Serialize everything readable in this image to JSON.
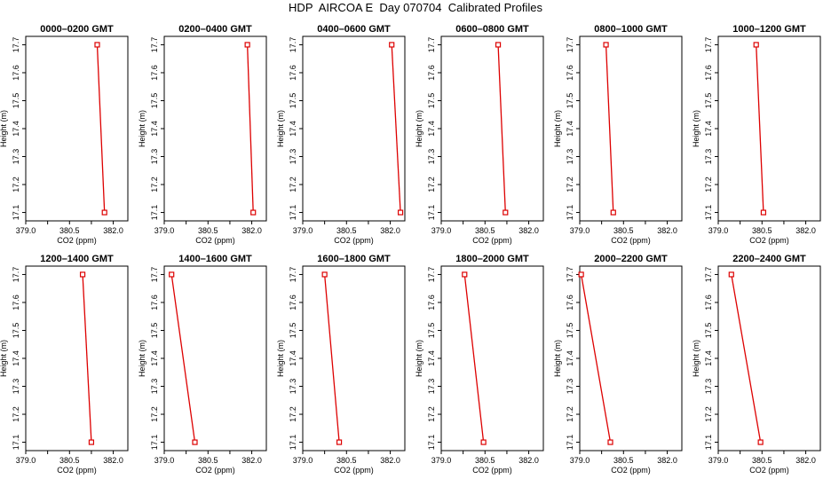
{
  "title": "HDP  AIRCOA E  Day 070704  Calibrated Profiles",
  "chart_data": [
    {
      "type": "line",
      "title": "0000–0200 GMT",
      "xlabel": "CO2 (ppm)",
      "ylabel": "Height (m)",
      "xlim": [
        379.0,
        382.5
      ],
      "ylim": [
        17.07,
        17.73
      ],
      "x_ticks": [
        "379.0",
        "380.5",
        "382.0"
      ],
      "y_ticks": [
        "17.1",
        "17.2",
        "17.3",
        "17.4",
        "17.5",
        "17.6",
        "17.7"
      ],
      "series": [
        {
          "x": [
            381.45,
            381.7
          ],
          "y": [
            17.7,
            17.1
          ]
        }
      ]
    },
    {
      "type": "line",
      "title": "0200–0400 GMT",
      "xlabel": "CO2 (ppm)",
      "ylabel": "Height (m)",
      "xlim": [
        379.0,
        382.5
      ],
      "ylim": [
        17.07,
        17.73
      ],
      "x_ticks": [
        "379.0",
        "380.5",
        "382.0"
      ],
      "y_ticks": [
        "17.1",
        "17.2",
        "17.3",
        "17.4",
        "17.5",
        "17.6",
        "17.7"
      ],
      "series": [
        {
          "x": [
            381.85,
            382.05
          ],
          "y": [
            17.7,
            17.1
          ]
        }
      ]
    },
    {
      "type": "line",
      "title": "0400–0600 GMT",
      "xlabel": "CO2 (ppm)",
      "ylabel": "Height (m)",
      "xlim": [
        379.0,
        382.5
      ],
      "ylim": [
        17.07,
        17.73
      ],
      "x_ticks": [
        "379.0",
        "380.5",
        "382.0"
      ],
      "y_ticks": [
        "17.1",
        "17.2",
        "17.3",
        "17.4",
        "17.5",
        "17.6",
        "17.7"
      ],
      "series": [
        {
          "x": [
            382.05,
            382.35
          ],
          "y": [
            17.7,
            17.1
          ]
        }
      ]
    },
    {
      "type": "line",
      "title": "0600–0800 GMT",
      "xlabel": "CO2 (ppm)",
      "ylabel": "Height (m)",
      "xlim": [
        379.0,
        382.5
      ],
      "ylim": [
        17.07,
        17.73
      ],
      "x_ticks": [
        "379.0",
        "380.5",
        "382.0"
      ],
      "y_ticks": [
        "17.1",
        "17.2",
        "17.3",
        "17.4",
        "17.5",
        "17.6",
        "17.7"
      ],
      "series": [
        {
          "x": [
            380.95,
            381.2
          ],
          "y": [
            17.7,
            17.1
          ]
        }
      ]
    },
    {
      "type": "line",
      "title": "0800–1000 GMT",
      "xlabel": "CO2 (ppm)",
      "ylabel": "Height (m)",
      "xlim": [
        379.0,
        382.5
      ],
      "ylim": [
        17.07,
        17.73
      ],
      "x_ticks": [
        "379.0",
        "380.5",
        "382.0"
      ],
      "y_ticks": [
        "17.1",
        "17.2",
        "17.3",
        "17.4",
        "17.5",
        "17.6",
        "17.7"
      ],
      "series": [
        {
          "x": [
            379.9,
            380.15
          ],
          "y": [
            17.7,
            17.1
          ]
        }
      ]
    },
    {
      "type": "line",
      "title": "1000–1200 GMT",
      "xlabel": "CO2 (ppm)",
      "ylabel": "Height (m)",
      "xlim": [
        379.0,
        382.5
      ],
      "ylim": [
        17.07,
        17.73
      ],
      "x_ticks": [
        "379.0",
        "380.5",
        "382.0"
      ],
      "y_ticks": [
        "17.1",
        "17.2",
        "17.3",
        "17.4",
        "17.5",
        "17.6",
        "17.7"
      ],
      "series": [
        {
          "x": [
            380.3,
            380.55
          ],
          "y": [
            17.7,
            17.1
          ]
        }
      ]
    },
    {
      "type": "line",
      "title": "1200–1400 GMT",
      "xlabel": "CO2 (ppm)",
      "ylabel": "Height (m)",
      "xlim": [
        379.0,
        382.5
      ],
      "ylim": [
        17.07,
        17.73
      ],
      "x_ticks": [
        "379.0",
        "380.5",
        "382.0"
      ],
      "y_ticks": [
        "17.1",
        "17.2",
        "17.3",
        "17.4",
        "17.5",
        "17.6",
        "17.7"
      ],
      "series": [
        {
          "x": [
            380.95,
            381.25
          ],
          "y": [
            17.7,
            17.1
          ]
        }
      ]
    },
    {
      "type": "line",
      "title": "1400–1600 GMT",
      "xlabel": "CO2 (ppm)",
      "ylabel": "Height (m)",
      "xlim": [
        379.0,
        382.5
      ],
      "ylim": [
        17.07,
        17.73
      ],
      "x_ticks": [
        "379.0",
        "380.5",
        "382.0"
      ],
      "y_ticks": [
        "17.1",
        "17.2",
        "17.3",
        "17.4",
        "17.5",
        "17.6",
        "17.7"
      ],
      "series": [
        {
          "x": [
            379.25,
            380.05
          ],
          "y": [
            17.7,
            17.1
          ]
        }
      ]
    },
    {
      "type": "line",
      "title": "1600–1800 GMT",
      "xlabel": "CO2 (ppm)",
      "ylabel": "Height (m)",
      "xlim": [
        379.0,
        382.5
      ],
      "ylim": [
        17.07,
        17.73
      ],
      "x_ticks": [
        "379.0",
        "380.5",
        "382.0"
      ],
      "y_ticks": [
        "17.1",
        "17.2",
        "17.3",
        "17.4",
        "17.5",
        "17.6",
        "17.7"
      ],
      "series": [
        {
          "x": [
            379.75,
            380.25
          ],
          "y": [
            17.7,
            17.1
          ]
        }
      ]
    },
    {
      "type": "line",
      "title": "1800–2000 GMT",
      "xlabel": "CO2 (ppm)",
      "ylabel": "Height (m)",
      "xlim": [
        379.0,
        382.5
      ],
      "ylim": [
        17.07,
        17.73
      ],
      "x_ticks": [
        "379.0",
        "380.5",
        "382.0"
      ],
      "y_ticks": [
        "17.1",
        "17.2",
        "17.3",
        "17.4",
        "17.5",
        "17.6",
        "17.7"
      ],
      "series": [
        {
          "x": [
            379.8,
            380.45
          ],
          "y": [
            17.7,
            17.1
          ]
        }
      ]
    },
    {
      "type": "line",
      "title": "2000–2200 GMT",
      "xlabel": "CO2 (ppm)",
      "ylabel": "Height (m)",
      "xlim": [
        379.0,
        382.5
      ],
      "ylim": [
        17.07,
        17.73
      ],
      "x_ticks": [
        "379.0",
        "380.5",
        "382.0"
      ],
      "y_ticks": [
        "17.1",
        "17.2",
        "17.3",
        "17.4",
        "17.5",
        "17.6",
        "17.7"
      ],
      "series": [
        {
          "x": [
            379.05,
            380.05
          ],
          "y": [
            17.7,
            17.1
          ]
        }
      ]
    },
    {
      "type": "line",
      "title": "2200–2400 GMT",
      "xlabel": "CO2 (ppm)",
      "ylabel": "Height (m)",
      "xlim": [
        379.0,
        382.5
      ],
      "ylim": [
        17.07,
        17.73
      ],
      "x_ticks": [
        "379.0",
        "380.5",
        "382.0"
      ],
      "y_ticks": [
        "17.1",
        "17.2",
        "17.3",
        "17.4",
        "17.5",
        "17.6",
        "17.7"
      ],
      "series": [
        {
          "x": [
            379.45,
            380.45
          ],
          "y": [
            17.7,
            17.1
          ]
        }
      ]
    }
  ],
  "colors": {
    "series": "#dd0000",
    "axis": "#000000"
  }
}
